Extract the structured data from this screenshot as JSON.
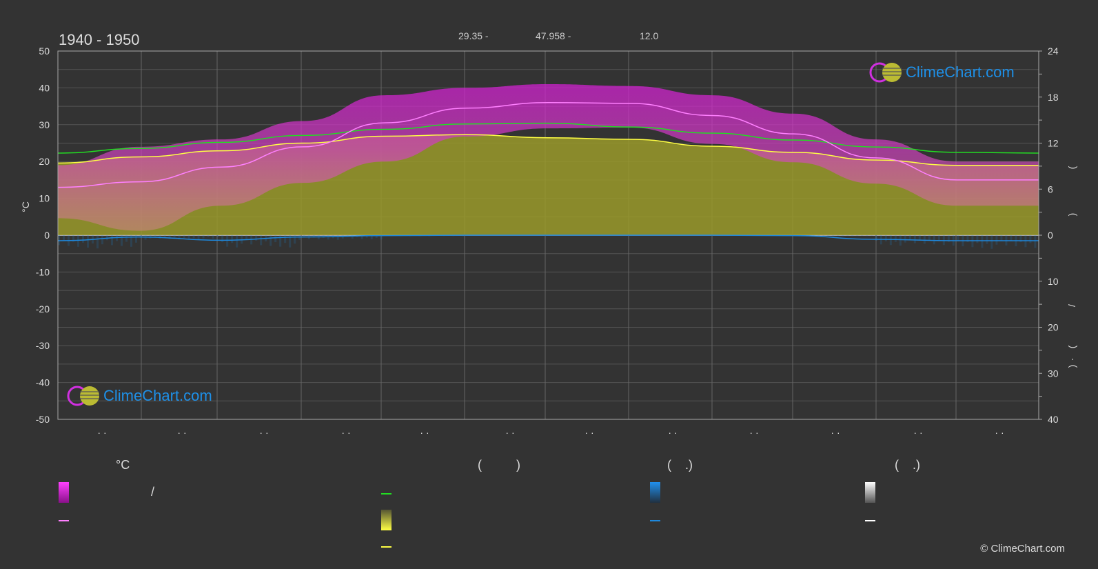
{
  "header": {
    "period": "1940 - 1950",
    "item1": "29.35 -",
    "item2": "47.958 -",
    "item3": "12.0"
  },
  "axes": {
    "left_label": "°C",
    "left_ticks": [
      "50",
      "40",
      "30",
      "20",
      "10",
      "0",
      "-10",
      "-20",
      "-30",
      "-40",
      "-50"
    ],
    "right_ticks_top": [
      "24",
      "18",
      "12",
      "6",
      "0"
    ],
    "right_ticks_bottom": [
      "10",
      "20",
      "30",
      "40"
    ],
    "right_glyphs": [
      "(",
      ")",
      "/",
      "(",
      "·",
      ")"
    ],
    "month_ticks": [
      "· ·",
      "· ·",
      "· ·",
      "· ·",
      "· ·",
      "· ·",
      "· ·",
      "· ·",
      "· ·",
      "· ·",
      "· ·",
      "· ·"
    ]
  },
  "legend": {
    "col1_header": "°C",
    "col2_header": "(          )",
    "col3_header": "(    .)",
    "col4_header": "(    .)",
    "slash": "/"
  },
  "logo_text": "ClimeChart.com",
  "copyright": "© ClimeChart.com",
  "colors": {
    "background": "#333333",
    "temp_range": "#d020d0",
    "temp_mean": "#ff80ff",
    "daylight": "#22dd22",
    "sunshine_fill": "#9a9a2a",
    "sunshine_line": "#ffff44",
    "precip": "#1e88dd",
    "snow": "#ffffff",
    "logo_blue": "#1e90e8"
  },
  "chart_data": {
    "type": "area",
    "title": "1940 - 1950",
    "ylabel": "°C",
    "ylim": [
      -50,
      50
    ],
    "y2_top_lim": [
      0,
      24
    ],
    "y2_bottom_lim": [
      0,
      40
    ],
    "x": [
      0,
      1,
      2,
      3,
      4,
      5,
      6,
      7,
      8,
      9,
      10,
      11,
      12
    ],
    "series": [
      {
        "name": "",
        "axis": "temp",
        "values": [
          13,
          14.5,
          18.5,
          24,
          30.5,
          34.5,
          36,
          35.8,
          32.5,
          27.5,
          21,
          15,
          15
        ]
      },
      {
        "name": "",
        "axis": "temp_range_high",
        "values": [
          19,
          24,
          26,
          31,
          38,
          40,
          41,
          40.5,
          38,
          33,
          26,
          20,
          20
        ]
      },
      {
        "name": "",
        "axis": "daylight_hours",
        "values": [
          10.7,
          11.3,
          12.1,
          13.0,
          13.8,
          14.5,
          14.6,
          14.1,
          13.3,
          12.4,
          11.5,
          10.8,
          10.7
        ]
      },
      {
        "name": "",
        "axis": "sunshine_hours",
        "values": [
          9.4,
          10.2,
          11.0,
          12.0,
          12.9,
          13.1,
          12.7,
          12.5,
          11.6,
          10.8,
          9.8,
          9.1,
          9.1
        ]
      },
      {
        "name": "",
        "axis": "precip_mm",
        "values": [
          1.2,
          0.4,
          1.1,
          0.4,
          0.1,
          0.0,
          0.0,
          0.0,
          0.0,
          0.1,
          0.9,
          1.2,
          1.2
        ]
      }
    ],
    "grid": true,
    "legend": "bottom"
  }
}
